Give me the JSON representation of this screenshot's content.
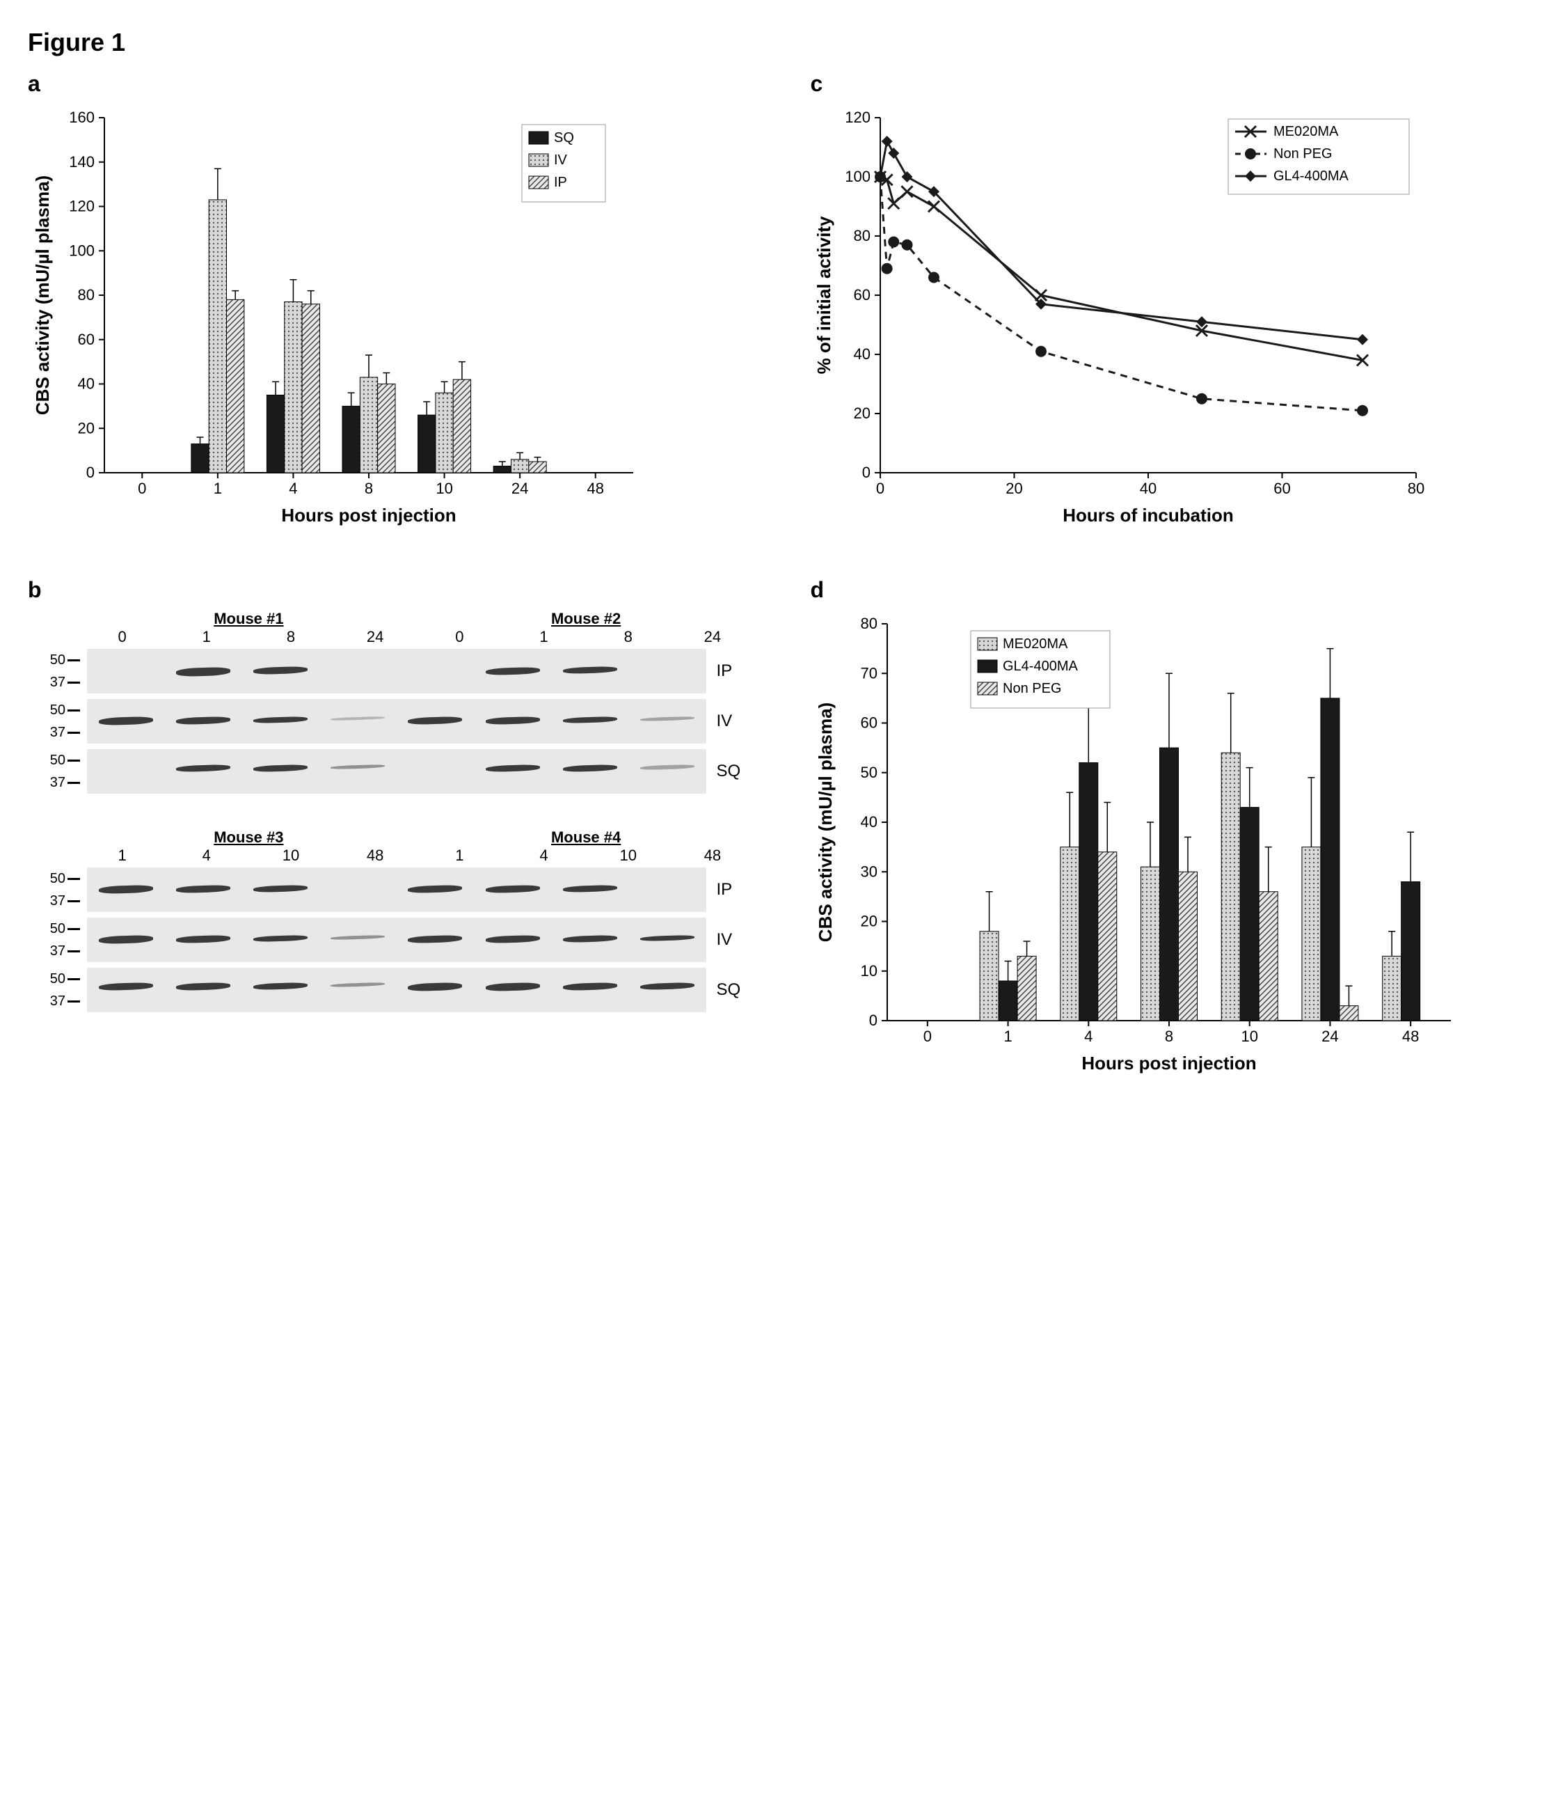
{
  "figure_title": "Figure 1",
  "panel_a": {
    "label": "a",
    "type": "bar",
    "xlabel": "Hours post injection",
    "ylabel": "CBS activity (mU/µl plasma)",
    "categories": [
      "0",
      "1",
      "4",
      "8",
      "10",
      "24",
      "48"
    ],
    "ylim": [
      0,
      160
    ],
    "ytick_step": 20,
    "series": [
      {
        "name": "SQ",
        "fill": "#1a1a1a",
        "pattern": "solid",
        "values": [
          0,
          13,
          35,
          30,
          26,
          3,
          0
        ],
        "errors": [
          0,
          3,
          6,
          6,
          6,
          2,
          0
        ]
      },
      {
        "name": "IV",
        "fill": "#c8c8c8",
        "pattern": "dots",
        "values": [
          0,
          123,
          77,
          43,
          36,
          6,
          0
        ],
        "errors": [
          0,
          14,
          10,
          10,
          5,
          3,
          0
        ]
      },
      {
        "name": "IP",
        "fill": "#d8d8d8",
        "pattern": "hatch",
        "values": [
          0,
          78,
          76,
          40,
          42,
          5,
          0
        ],
        "errors": [
          0,
          4,
          6,
          5,
          8,
          2,
          0
        ]
      }
    ],
    "axis_fontsize": 22,
    "label_fontsize": 26,
    "background_color": "#ffffff"
  },
  "panel_b": {
    "label": "b",
    "type": "western_blot",
    "groups": [
      {
        "mice": [
          "Mouse  #1",
          "Mouse #2"
        ],
        "timepoints": [
          "0",
          "1",
          "8",
          "24",
          "0",
          "1",
          "8",
          "24"
        ],
        "rows": [
          {
            "label": "IP",
            "markers": [
              "50",
              "37"
            ],
            "bands": [
              [
                0,
                0,
                0
              ],
              [
                1,
                42,
                12
              ],
              [
                1,
                40,
                10
              ],
              [
                0,
                0,
                0
              ],
              [
                0,
                0,
                0
              ],
              [
                1,
                42,
                10
              ],
              [
                1,
                40,
                9
              ],
              [
                0,
                0,
                0
              ]
            ]
          },
          {
            "label": "IV",
            "markers": [
              "50",
              "37"
            ],
            "bands": [
              [
                1,
                40,
                11
              ],
              [
                1,
                40,
                10
              ],
              [
                1,
                40,
                8
              ],
              [
                0.3,
                40,
                4
              ],
              [
                1,
                40,
                10
              ],
              [
                1,
                40,
                10
              ],
              [
                1,
                40,
                8
              ],
              [
                0.4,
                40,
                5
              ]
            ]
          },
          {
            "label": "SQ",
            "markers": [
              "50",
              "37"
            ],
            "bands": [
              [
                0,
                0,
                0
              ],
              [
                1,
                36,
                9
              ],
              [
                1,
                36,
                9
              ],
              [
                0.5,
                36,
                5
              ],
              [
                0,
                0,
                0
              ],
              [
                1,
                36,
                9
              ],
              [
                1,
                36,
                9
              ],
              [
                0.4,
                36,
                6
              ]
            ]
          }
        ]
      },
      {
        "mice": [
          "Mouse #3",
          "Mouse #4"
        ],
        "timepoints": [
          "1",
          "4",
          "10",
          "48",
          "1",
          "4",
          "10",
          "48"
        ],
        "rows": [
          {
            "label": "IP",
            "markers": [
              "50",
              "37"
            ],
            "bands": [
              [
                1,
                40,
                11
              ],
              [
                1,
                40,
                10
              ],
              [
                1,
                40,
                9
              ],
              [
                0,
                0,
                0
              ],
              [
                1,
                40,
                10
              ],
              [
                1,
                40,
                10
              ],
              [
                1,
                40,
                9
              ],
              [
                0,
                0,
                0
              ]
            ]
          },
          {
            "label": "IV",
            "markers": [
              "50",
              "37"
            ],
            "bands": [
              [
                1,
                40,
                11
              ],
              [
                1,
                40,
                10
              ],
              [
                1,
                40,
                8
              ],
              [
                0.5,
                40,
                5
              ],
              [
                1,
                40,
                10
              ],
              [
                1,
                40,
                10
              ],
              [
                1,
                40,
                9
              ],
              [
                1,
                40,
                7
              ]
            ]
          },
          {
            "label": "SQ",
            "markers": [
              "50",
              "37"
            ],
            "bands": [
              [
                1,
                34,
                10
              ],
              [
                1,
                34,
                10
              ],
              [
                1,
                34,
                9
              ],
              [
                0.5,
                34,
                5
              ],
              [
                1,
                34,
                11
              ],
              [
                1,
                34,
                11
              ],
              [
                1,
                34,
                10
              ],
              [
                1,
                34,
                9
              ]
            ]
          }
        ]
      }
    ]
  },
  "panel_c": {
    "label": "c",
    "type": "line",
    "xlabel": "Hours of incubation",
    "ylabel": "% of initial activity",
    "xlim": [
      0,
      80
    ],
    "xtick_step": 20,
    "ylim": [
      0,
      120
    ],
    "ytick_step": 20,
    "series": [
      {
        "name": "ME020MA",
        "marker": "x",
        "dash": "solid",
        "color": "#1a1a1a",
        "x": [
          0,
          1,
          2,
          4,
          8,
          24,
          48,
          72
        ],
        "y": [
          100,
          99,
          91,
          95,
          90,
          60,
          48,
          38
        ]
      },
      {
        "name": "Non PEG",
        "marker": "circle",
        "dash": "dashed",
        "color": "#1a1a1a",
        "x": [
          0,
          1,
          2,
          4,
          8,
          24,
          48,
          72
        ],
        "y": [
          100,
          69,
          78,
          77,
          66,
          41,
          25,
          21
        ]
      },
      {
        "name": "GL4-400MA",
        "marker": "diamond",
        "dash": "solid",
        "color": "#1a1a1a",
        "x": [
          0,
          1,
          2,
          4,
          8,
          24,
          48,
          72
        ],
        "y": [
          100,
          112,
          108,
          100,
          95,
          57,
          51,
          45
        ]
      }
    ],
    "axis_fontsize": 22,
    "label_fontsize": 26
  },
  "panel_d": {
    "label": "d",
    "type": "bar",
    "xlabel": "Hours post injection",
    "ylabel": "CBS activity (mU/µl plasma)",
    "categories": [
      "0",
      "1",
      "4",
      "8",
      "10",
      "24",
      "48"
    ],
    "ylim": [
      0,
      80
    ],
    "ytick_step": 10,
    "series": [
      {
        "name": "ME020MA",
        "fill": "#c8c8c8",
        "pattern": "dots",
        "values": [
          0,
          18,
          35,
          31,
          54,
          35,
          13
        ],
        "errors": [
          0,
          8,
          11,
          9,
          12,
          14,
          5
        ]
      },
      {
        "name": "GL4-400MA",
        "fill": "#1a1a1a",
        "pattern": "solid",
        "values": [
          0,
          8,
          52,
          55,
          43,
          65,
          28
        ],
        "errors": [
          0,
          4,
          23,
          15,
          8,
          10,
          10
        ]
      },
      {
        "name": "Non PEG",
        "fill": "#d8d8d8",
        "pattern": "hatch",
        "values": [
          0,
          13,
          34,
          30,
          26,
          3,
          0
        ],
        "errors": [
          0,
          3,
          10,
          7,
          9,
          4,
          0
        ]
      }
    ],
    "axis_fontsize": 22,
    "label_fontsize": 26
  }
}
